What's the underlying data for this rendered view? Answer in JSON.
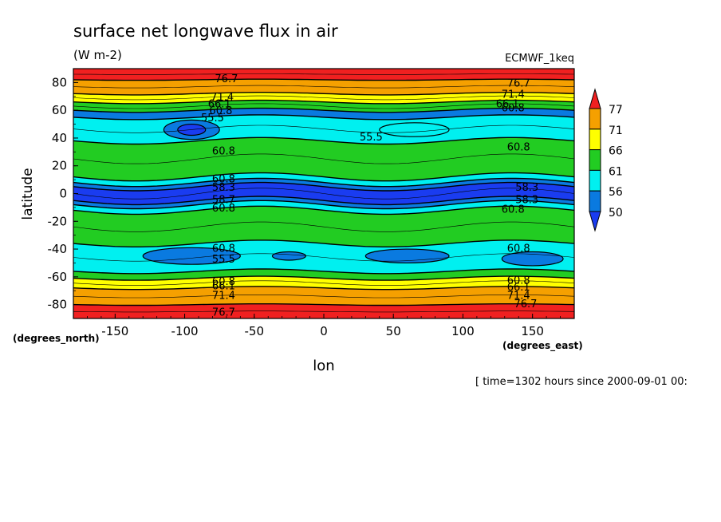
{
  "chart_data": {
    "type": "heatmap",
    "title": "surface net longwave flux in air",
    "units": "(W m-2)",
    "dataset": "ECMWF_1keq",
    "xlabel": "lon",
    "ylabel": "latitude",
    "x_unit": "(degrees_east)",
    "y_unit": "(degrees_north)",
    "time_note": "[ time=1302 hours since 2000-09-01 00:",
    "xlim": [
      -180,
      180
    ],
    "ylim": [
      -90,
      90
    ],
    "x_ticks": [
      {
        "value": -150,
        "label": "-150"
      },
      {
        "value": -100,
        "label": "-100"
      },
      {
        "value": -50,
        "label": "-50"
      },
      {
        "value": 0,
        "label": "0"
      },
      {
        "value": 50,
        "label": "50"
      },
      {
        "value": 100,
        "label": "100"
      },
      {
        "value": 150,
        "label": "150"
      }
    ],
    "y_ticks": [
      {
        "value": 80,
        "label": "80"
      },
      {
        "value": 60,
        "label": "60"
      },
      {
        "value": 40,
        "label": "40"
      },
      {
        "value": 20,
        "label": "20"
      },
      {
        "value": 0,
        "label": "0"
      },
      {
        "value": -20,
        "label": "-20"
      },
      {
        "value": -40,
        "label": "-40"
      },
      {
        "value": -60,
        "label": "-60"
      },
      {
        "value": -80,
        "label": "-80"
      }
    ],
    "colorbar": {
      "levels": [
        "77",
        "71",
        "66",
        "61",
        "56",
        "50"
      ],
      "colors": [
        "#f02020",
        "#f5a000",
        "#ffff00",
        "#22cc22",
        "#00f0f0",
        "#0a7ae0",
        "#1a3cf0"
      ]
    },
    "bands": [
      {
        "from": 90,
        "to": 82,
        "color": "#f02020"
      },
      {
        "from": 82,
        "to": 72,
        "color": "#f5a000"
      },
      {
        "from": 72,
        "to": 66,
        "color": "#ffff00"
      },
      {
        "from": 66,
        "to": 60,
        "color": "#22cc22"
      },
      {
        "from": 60,
        "to": 55,
        "color": "#0a7ae0"
      },
      {
        "from": 55,
        "to": 38,
        "color": "#00f0f0"
      },
      {
        "from": 38,
        "to": 12,
        "color": "#22cc22"
      },
      {
        "from": 12,
        "to": 8,
        "color": "#00f0f0"
      },
      {
        "from": 8,
        "to": 5,
        "color": "#0a7ae0"
      },
      {
        "from": 5,
        "to": -5,
        "color": "#1a3cf0"
      },
      {
        "from": -5,
        "to": -8,
        "color": "#0a7ae0"
      },
      {
        "from": -8,
        "to": -12,
        "color": "#00f0f0"
      },
      {
        "from": -12,
        "to": -36,
        "color": "#22cc22"
      },
      {
        "from": -36,
        "to": -56,
        "color": "#00f0f0"
      },
      {
        "from": -56,
        "to": -61,
        "color": "#22cc22"
      },
      {
        "from": -61,
        "to": -68,
        "color": "#ffff00"
      },
      {
        "from": -68,
        "to": -80,
        "color": "#f5a000"
      },
      {
        "from": -80,
        "to": -90,
        "color": "#f02020"
      }
    ],
    "blobs": [
      {
        "lon": -95,
        "lat": 46,
        "rlon": 20,
        "rlat": 7,
        "color": "#0a7ae0"
      },
      {
        "lon": -95,
        "lat": 46,
        "rlon": 10,
        "rlat": 4,
        "color": "#1a3cf0"
      },
      {
        "lon": 65,
        "lat": 46,
        "rlon": 25,
        "rlat": 5,
        "color": "#00f0f0"
      },
      {
        "lon": -95,
        "lat": -45,
        "rlon": 35,
        "rlat": 6,
        "color": "#0a7ae0"
      },
      {
        "lon": 60,
        "lat": -45,
        "rlon": 30,
        "rlat": 5,
        "color": "#0a7ae0"
      },
      {
        "lon": 150,
        "lat": -47,
        "rlon": 22,
        "rlat": 5,
        "color": "#0a7ae0"
      },
      {
        "lon": -25,
        "lat": -45,
        "rlon": 12,
        "rlat": 3,
        "color": "#0a7ae0"
      }
    ],
    "contour_labels": [
      {
        "lon": -70,
        "lat": 83,
        "text": "76.7"
      },
      {
        "lon": 140,
        "lat": 80,
        "text": "76.7"
      },
      {
        "lon": -73,
        "lat": 70,
        "text": "71.4"
      },
      {
        "lon": 136,
        "lat": 72,
        "text": "71.4"
      },
      {
        "lon": -75,
        "lat": 65,
        "text": "66.1"
      },
      {
        "lon": 132,
        "lat": 65,
        "text": "66.1"
      },
      {
        "lon": -74,
        "lat": 60,
        "text": "60.8"
      },
      {
        "lon": 136,
        "lat": 62,
        "text": "60.8"
      },
      {
        "lon": -80,
        "lat": 55,
        "text": "55.5"
      },
      {
        "lon": 34,
        "lat": 41,
        "text": "55.5"
      },
      {
        "lon": -72,
        "lat": 31,
        "text": "60.8"
      },
      {
        "lon": 140,
        "lat": 34,
        "text": "60.8"
      },
      {
        "lon": -72,
        "lat": 11,
        "text": "60.8"
      },
      {
        "lon": -72,
        "lat": 5,
        "text": "58.3"
      },
      {
        "lon": 146,
        "lat": 5,
        "text": "58.3"
      },
      {
        "lon": -72,
        "lat": -4,
        "text": "58.7"
      },
      {
        "lon": 146,
        "lat": -4,
        "text": "58.3"
      },
      {
        "lon": -72,
        "lat": -10,
        "text": "60.8"
      },
      {
        "lon": 136,
        "lat": -11,
        "text": "60.8"
      },
      {
        "lon": -72,
        "lat": -39,
        "text": "60.8"
      },
      {
        "lon": 140,
        "lat": -39,
        "text": "60.8"
      },
      {
        "lon": -72,
        "lat": -47,
        "text": "55.5"
      },
      {
        "lon": -72,
        "lat": -63,
        "text": "60.8"
      },
      {
        "lon": 140,
        "lat": -62,
        "text": "60.8"
      },
      {
        "lon": -72,
        "lat": -66,
        "text": "66.1"
      },
      {
        "lon": 140,
        "lat": -67,
        "text": "66.1"
      },
      {
        "lon": -72,
        "lat": -73,
        "text": "71.4"
      },
      {
        "lon": 140,
        "lat": -73,
        "text": "71.4"
      },
      {
        "lon": -72,
        "lat": -85,
        "text": "76.7"
      },
      {
        "lon": 145,
        "lat": -79,
        "text": "76.7"
      }
    ]
  }
}
